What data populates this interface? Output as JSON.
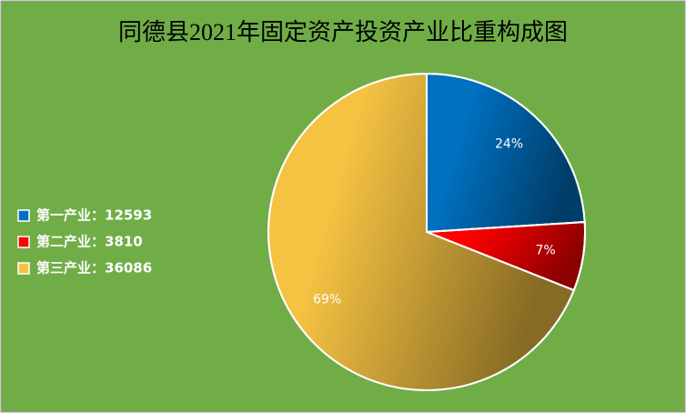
{
  "chart_data": {
    "type": "pie",
    "title": "同德县2021年固定资产投资产业比重构成图",
    "categories": [
      "第一产业：12593",
      "第二产业：3810",
      "第三产业：36086"
    ],
    "values": [
      24,
      7,
      69
    ],
    "value_labels": [
      "24%",
      "7%",
      "69%"
    ],
    "colors": [
      "#0070c0",
      "#ff0000",
      "#f5c242"
    ],
    "legend": "left"
  }
}
